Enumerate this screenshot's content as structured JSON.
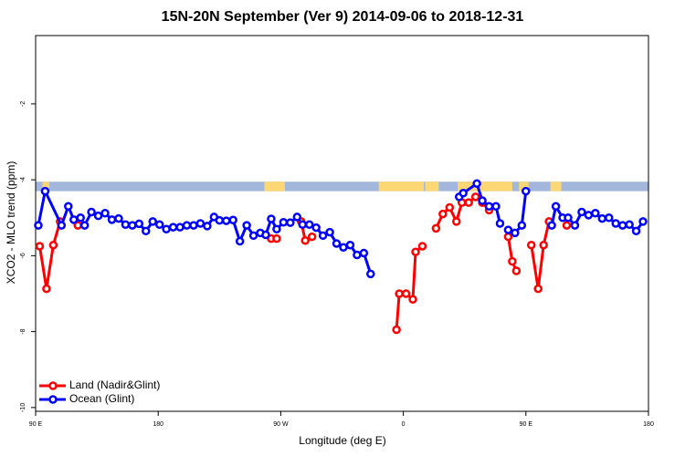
{
  "chart_data": {
    "type": "line",
    "title": "15N-20N September (Ver 9)   2014-09-06 to 2018-12-31",
    "xlabel": "Longitude (deg E)",
    "ylabel": "XCO2 - MLO trend (ppm)",
    "x_ticks": [
      {
        "value": 90,
        "label": "90 E"
      },
      {
        "value": 180,
        "label": "180"
      },
      {
        "value": 270,
        "label": "90 W"
      },
      {
        "value": 360,
        "label": "0"
      },
      {
        "value": 450,
        "label": "90 E"
      },
      {
        "value": 540,
        "label": "180"
      }
    ],
    "y_ticks": [
      -10,
      -8,
      -6,
      -4,
      -2
    ],
    "xlim": [
      90,
      540
    ],
    "ylim": [
      -10.1,
      -0.2
    ],
    "land_mask_band": {
      "ymin": -4.3,
      "ymax": -4.05,
      "ocean_color": "#a3b7dc",
      "land_color": "#fcd774",
      "land_ranges": [
        [
          95,
          100
        ],
        [
          258,
          270
        ],
        [
          266,
          273
        ],
        [
          342,
          375
        ],
        [
          376,
          386
        ],
        [
          400,
          440
        ],
        [
          445,
          452
        ],
        [
          468,
          476
        ]
      ]
    },
    "legend": {
      "position": "bottom-left"
    },
    "series": [
      {
        "name": "Land (Nadir&Glint)",
        "color": "#ff0000",
        "segments": [
          [
            [
              93,
              -5.75
            ],
            [
              98,
              -6.87
            ],
            [
              103,
              -5.72
            ],
            [
              108,
              -5.1
            ]
          ],
          [
            [
              121,
              -5.2
            ]
          ],
          [
            [
              263,
              -5.55
            ],
            [
              267,
              -5.55
            ]
          ],
          [
            [
              285,
              -5.1
            ],
            [
              288,
              -5.6
            ],
            [
              293,
              -5.5
            ]
          ],
          [
            [
              355,
              -7.95
            ],
            [
              357,
              -7.0
            ],
            [
              362,
              -7.0
            ],
            [
              367,
              -7.15
            ],
            [
              369,
              -5.9
            ],
            [
              374,
              -5.75
            ]
          ],
          [
            [
              384,
              -5.28
            ],
            [
              389,
              -4.9
            ],
            [
              394,
              -4.73
            ],
            [
              399,
              -5.1
            ],
            [
              403,
              -4.6
            ],
            [
              408,
              -4.6
            ],
            [
              413,
              -4.45
            ],
            [
              418,
              -4.6
            ],
            [
              423,
              -4.8
            ]
          ],
          [
            [
              437,
              -5.5
            ],
            [
              440,
              -6.15
            ],
            [
              443,
              -6.4
            ]
          ],
          [
            [
              454,
              -5.72
            ],
            [
              459,
              -6.87
            ],
            [
              463,
              -5.72
            ],
            [
              467,
              -5.1
            ]
          ],
          [
            [
              480,
              -5.2
            ]
          ]
        ]
      },
      {
        "name": "Ocean (Glint)",
        "color": "#0000ff",
        "segments": [
          [
            [
              92,
              -5.2
            ],
            [
              97,
              -4.3
            ],
            [
              109,
              -5.2
            ],
            [
              114,
              -4.7
            ],
            [
              118,
              -5.05
            ],
            [
              123,
              -5.0
            ],
            [
              126,
              -5.2
            ],
            [
              131,
              -4.85
            ],
            [
              136,
              -4.95
            ],
            [
              141,
              -4.88
            ],
            [
              146,
              -5.05
            ],
            [
              151,
              -5.02
            ],
            [
              156,
              -5.18
            ],
            [
              161,
              -5.2
            ],
            [
              166,
              -5.16
            ],
            [
              171,
              -5.35
            ],
            [
              176,
              -5.1
            ],
            [
              181,
              -5.18
            ],
            [
              186,
              -5.3
            ],
            [
              191,
              -5.25
            ],
            [
              196,
              -5.25
            ],
            [
              201,
              -5.2
            ],
            [
              206,
              -5.2
            ],
            [
              211,
              -5.15
            ],
            [
              216,
              -5.22
            ],
            [
              221,
              -4.98
            ],
            [
              225,
              -5.07
            ],
            [
              230,
              -5.08
            ],
            [
              235,
              -5.06
            ],
            [
              240,
              -5.62
            ],
            [
              245,
              -5.2
            ],
            [
              250,
              -5.47
            ],
            [
              255,
              -5.4
            ],
            [
              259,
              -5.45
            ],
            [
              263,
              -5.03
            ],
            [
              267,
              -5.3
            ],
            [
              272,
              -5.12
            ],
            [
              277,
              -5.13
            ],
            [
              282,
              -4.98
            ],
            [
              286,
              -5.18
            ],
            [
              291,
              -5.18
            ],
            [
              296,
              -5.26
            ],
            [
              301,
              -5.47
            ],
            [
              306,
              -5.38
            ],
            [
              311,
              -5.68
            ],
            [
              316,
              -5.78
            ],
            [
              321,
              -5.72
            ],
            [
              326,
              -5.98
            ],
            [
              331,
              -5.93
            ],
            [
              336,
              -6.48
            ]
          ],
          [
            [
              401,
              -4.45
            ],
            [
              404,
              -4.35
            ],
            [
              414,
              -4.1
            ],
            [
              418,
              -4.55
            ],
            [
              423,
              -4.7
            ],
            [
              428,
              -4.7
            ],
            [
              431,
              -5.15
            ]
          ],
          [
            [
              437,
              -5.32
            ],
            [
              442,
              -5.4
            ],
            [
              447,
              -5.2
            ],
            [
              450,
              -4.3
            ]
          ],
          [
            [
              469,
              -5.2
            ],
            [
              472,
              -4.7
            ],
            [
              477,
              -5.0
            ],
            [
              481,
              -5.0
            ],
            [
              486,
              -5.2
            ],
            [
              491,
              -4.85
            ],
            [
              496,
              -4.93
            ],
            [
              501,
              -4.88
            ],
            [
              506,
              -5.02
            ],
            [
              511,
              -5.0
            ],
            [
              516,
              -5.15
            ],
            [
              521,
              -5.2
            ],
            [
              526,
              -5.18
            ],
            [
              531,
              -5.35
            ],
            [
              536,
              -5.1
            ]
          ]
        ]
      }
    ]
  }
}
